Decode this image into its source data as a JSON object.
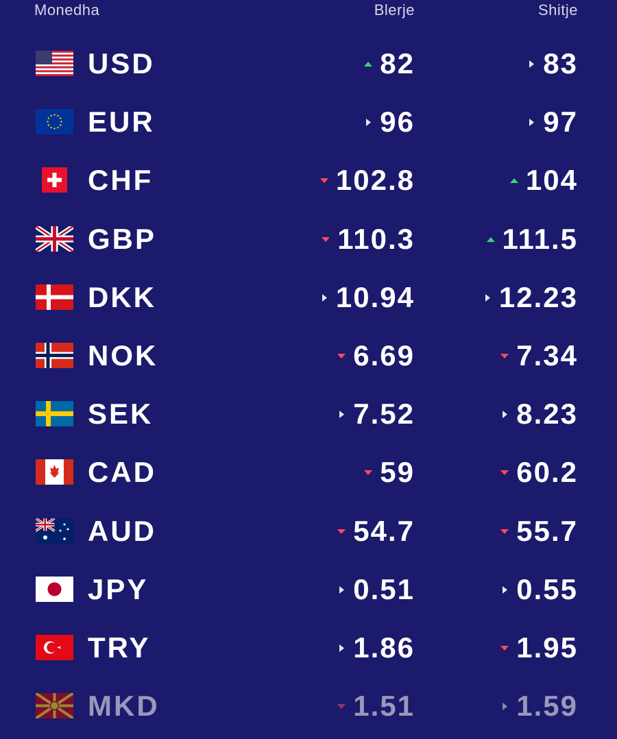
{
  "header": {
    "currency": "Monedha",
    "buy": "Blerje",
    "sell": "Shitje"
  },
  "rows": [
    {
      "code": "USD",
      "buy": {
        "value": "82",
        "trend": "up"
      },
      "sell": {
        "value": "83",
        "trend": "flat"
      }
    },
    {
      "code": "EUR",
      "buy": {
        "value": "96",
        "trend": "flat"
      },
      "sell": {
        "value": "97",
        "trend": "flat"
      }
    },
    {
      "code": "CHF",
      "buy": {
        "value": "102.8",
        "trend": "down"
      },
      "sell": {
        "value": "104",
        "trend": "up"
      }
    },
    {
      "code": "GBP",
      "buy": {
        "value": "110.3",
        "trend": "down"
      },
      "sell": {
        "value": "111.5",
        "trend": "up"
      }
    },
    {
      "code": "DKK",
      "buy": {
        "value": "10.94",
        "trend": "flat"
      },
      "sell": {
        "value": "12.23",
        "trend": "flat"
      }
    },
    {
      "code": "NOK",
      "buy": {
        "value": "6.69",
        "trend": "down"
      },
      "sell": {
        "value": "7.34",
        "trend": "down"
      }
    },
    {
      "code": "SEK",
      "buy": {
        "value": "7.52",
        "trend": "flat"
      },
      "sell": {
        "value": "8.23",
        "trend": "flat"
      }
    },
    {
      "code": "CAD",
      "buy": {
        "value": "59",
        "trend": "down"
      },
      "sell": {
        "value": "60.2",
        "trend": "down"
      }
    },
    {
      "code": "AUD",
      "buy": {
        "value": "54.7",
        "trend": "down"
      },
      "sell": {
        "value": "55.7",
        "trend": "down"
      }
    },
    {
      "code": "JPY",
      "buy": {
        "value": "0.51",
        "trend": "flat"
      },
      "sell": {
        "value": "0.55",
        "trend": "flat"
      }
    },
    {
      "code": "TRY",
      "buy": {
        "value": "1.86",
        "trend": "flat"
      },
      "sell": {
        "value": "1.95",
        "trend": "down"
      }
    },
    {
      "code": "MKD",
      "buy": {
        "value": "1.51",
        "trend": "down"
      },
      "sell": {
        "value": "1.59",
        "trend": "flat"
      }
    }
  ]
}
